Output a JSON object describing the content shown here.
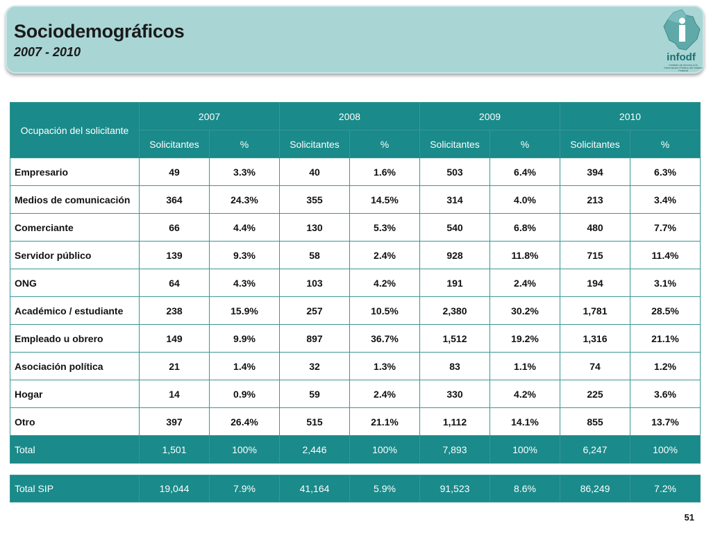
{
  "header": {
    "title": "Sociodemográficos",
    "subtitle": "2007 - 2010",
    "logo_text": "infodf",
    "logo_caption": "Instituto de Acceso a la Información Pública del Distrito Federal"
  },
  "table": {
    "category_header": "Ocupación del solicitante",
    "years": [
      "2007",
      "2008",
      "2009",
      "2010"
    ],
    "sub_headers": [
      "Solicitantes",
      "%"
    ],
    "rows": [
      {
        "label": "Empresario",
        "values": [
          "49",
          "3.3%",
          "40",
          "1.6%",
          "503",
          "6.4%",
          "394",
          "6.3%"
        ]
      },
      {
        "label": "Medios de comunicación",
        "values": [
          "364",
          "24.3%",
          "355",
          "14.5%",
          "314",
          "4.0%",
          "213",
          "3.4%"
        ]
      },
      {
        "label": "Comerciante",
        "values": [
          "66",
          "4.4%",
          "130",
          "5.3%",
          "540",
          "6.8%",
          "480",
          "7.7%"
        ]
      },
      {
        "label": "Servidor público",
        "values": [
          "139",
          "9.3%",
          "58",
          "2.4%",
          "928",
          "11.8%",
          "715",
          "11.4%"
        ]
      },
      {
        "label": "ONG",
        "values": [
          "64",
          "4.3%",
          "103",
          "4.2%",
          "191",
          "2.4%",
          "194",
          "3.1%"
        ]
      },
      {
        "label": "Académico / estudiante",
        "values": [
          "238",
          "15.9%",
          "257",
          "10.5%",
          "2,380",
          "30.2%",
          "1,781",
          "28.5%"
        ]
      },
      {
        "label": "Empleado u obrero",
        "values": [
          "149",
          "9.9%",
          "897",
          "36.7%",
          "1,512",
          "19.2%",
          "1,316",
          "21.1%"
        ]
      },
      {
        "label": "Asociación política",
        "values": [
          "21",
          "1.4%",
          "32",
          "1.3%",
          "83",
          "1.1%",
          "74",
          "1.2%"
        ]
      },
      {
        "label": "Hogar",
        "values": [
          "14",
          "0.9%",
          "59",
          "2.4%",
          "330",
          "4.2%",
          "225",
          "3.6%"
        ]
      },
      {
        "label": "Otro",
        "values": [
          "397",
          "26.4%",
          "515",
          "21.1%",
          "1,112",
          "14.1%",
          "855",
          "13.7%"
        ]
      }
    ],
    "total": {
      "label": "Total",
      "values": [
        "1,501",
        "100%",
        "2,446",
        "100%",
        "7,893",
        "100%",
        "6,247",
        "100%"
      ]
    }
  },
  "sip": {
    "label": "Total SIP",
    "values": [
      "19,044",
      "7.9%",
      "41,164",
      "5.9%",
      "91,523",
      "8.6%",
      "86,249",
      "7.2%"
    ]
  },
  "footer": {
    "page_number": "51"
  },
  "colors": {
    "header_bg": "#a9d5d5",
    "table_header": "#1a8a8a",
    "border": "#3a9595"
  }
}
